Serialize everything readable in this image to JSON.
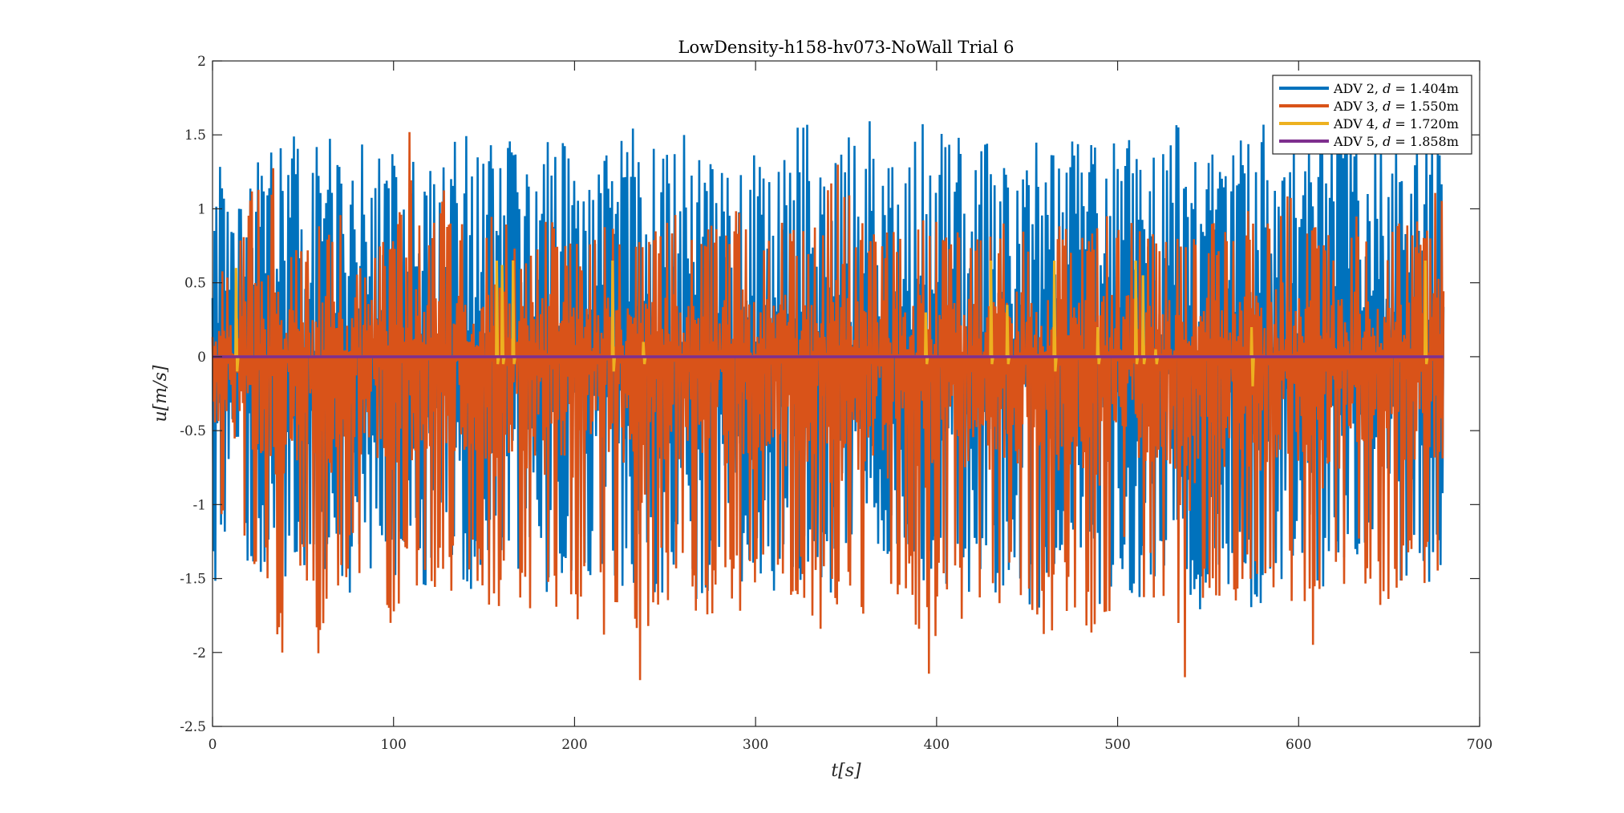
{
  "chart_data": {
    "type": "line",
    "title": "LowDensity-h158-hv073-NoWall Trial 6",
    "xlabel": "t[s]",
    "ylabel": "u[m/s]",
    "xlim": [
      0,
      700
    ],
    "ylim": [
      -2.5,
      2
    ],
    "xticks": [
      0,
      100,
      200,
      300,
      400,
      500,
      600,
      700
    ],
    "yticks": [
      -2.5,
      -2,
      -1.5,
      -1,
      -0.5,
      0,
      0.5,
      1,
      1.5,
      2
    ],
    "xtick_labels": [
      "0",
      "100",
      "200",
      "300",
      "400",
      "500",
      "600",
      "700"
    ],
    "ytick_labels": [
      "-2.5",
      "-2",
      "-1.5",
      "-1",
      "-0.5",
      "0",
      "0.5",
      "1",
      "1.5",
      "2"
    ],
    "grid": false,
    "legend_position": "top-right",
    "series": [
      {
        "name": "ADV 2, d = 1.404m",
        "color": "#0072BD",
        "x_range": [
          0,
          680
        ],
        "envelope_max": [
          1.53,
          1.12,
          1.38,
          1.55,
          1.6,
          1.48,
          1.45,
          1.55,
          1.5,
          1.35,
          1.48,
          1.5,
          1.45,
          1.52,
          1.55,
          1.62,
          1.52,
          1.55,
          1.47,
          1.52,
          1.45,
          1.35,
          1.48,
          1.55,
          1.62,
          1.45,
          1.55,
          1.48,
          1.55,
          1.55,
          1.35,
          1.42,
          1.55,
          1.66,
          1.45,
          1.48,
          1.58,
          1.75,
          1.45,
          1.55,
          1.7,
          1.55,
          1.48,
          1.55,
          1.48,
          1.42,
          1.58,
          1.55,
          1.62,
          1.45,
          1.55,
          1.48,
          1.55,
          1.48,
          1.62,
          1.55,
          1.55,
          1.45,
          1.55,
          1.6,
          1.58,
          1.48,
          1.55,
          1.62,
          1.55,
          1.55,
          1.62,
          1.5,
          1.58,
          1.48
        ],
        "envelope_min": [
          -1.55,
          -1.62,
          -1.55,
          -1.45,
          -1.52,
          -1.62,
          -1.58,
          -1.55,
          -1.62,
          -1.55,
          -1.58,
          -1.52,
          -1.62,
          -1.55,
          -1.7,
          -1.55,
          -1.62,
          -1.58,
          -1.55,
          -1.72,
          -1.62,
          -1.55,
          -1.58,
          -1.65,
          -1.55,
          -1.62,
          -1.55,
          -1.72,
          -1.58,
          -1.62,
          -1.55,
          -1.65,
          -1.58,
          -1.62,
          -1.55,
          -1.62,
          -1.58,
          -1.55,
          -1.62,
          -1.68,
          -1.7,
          -1.58,
          -1.62,
          -1.55,
          -1.62,
          -1.55,
          -1.78,
          -1.55,
          -1.62,
          -1.58,
          -1.78,
          -1.58,
          -1.72,
          -1.62,
          -1.55,
          -1.8,
          -1.62,
          -1.55,
          -1.78,
          -1.65,
          -1.58,
          -1.62,
          -1.55,
          -1.62,
          -1.58,
          -1.55,
          -1.6,
          -1.55,
          -1.62,
          -1.58
        ]
      },
      {
        "name": "ADV 3, d = 1.550m",
        "color": "#D95319",
        "x_range": [
          0,
          680
        ],
        "envelope_max": [
          0.58,
          0.62,
          1.0,
          1.67,
          0.7,
          0.8,
          0.95,
          0.9,
          1.7,
          0.85,
          0.75,
          1.62,
          0.8,
          1.15,
          0.9,
          0.85,
          1.25,
          0.75,
          0.85,
          0.95,
          0.8,
          0.75,
          0.9,
          0.85,
          0.8,
          0.9,
          1.0,
          0.85,
          0.9,
          0.95,
          1.05,
          0.9,
          1.0,
          0.85,
          0.9,
          1.7,
          0.95,
          0.9,
          0.85,
          0.95,
          1.0,
          0.9,
          0.85,
          0.95,
          0.9,
          1.05,
          0.85,
          0.95,
          0.9,
          0.85,
          0.95,
          1.0,
          0.9,
          0.8,
          0.95,
          0.85,
          0.9,
          0.95,
          1.0,
          0.85,
          1.25,
          0.9,
          0.95,
          0.85,
          1.0,
          0.9,
          0.85,
          0.95,
          0.9,
          1.4
        ],
        "envelope_min": [
          -1.0,
          -1.2,
          -1.55,
          -1.5,
          -2.12,
          -1.6,
          -2.18,
          -1.55,
          -1.52,
          -1.62,
          -1.83,
          -1.58,
          -1.55,
          -1.6,
          -1.62,
          -1.55,
          -1.85,
          -1.6,
          -1.85,
          -1.8,
          -1.85,
          -1.7,
          -1.98,
          -2.02,
          -2.27,
          -1.7,
          -1.62,
          -1.78,
          -1.82,
          -1.75,
          -1.85,
          -1.62,
          -1.8,
          -1.68,
          -1.85,
          -1.92,
          -1.75,
          -2.06,
          -1.82,
          -1.7,
          -2.3,
          -1.62,
          -1.78,
          -1.7,
          -1.85,
          -1.68,
          -1.85,
          -2.0,
          -1.75,
          -1.82,
          -2.1,
          -1.6,
          -1.62,
          -1.85,
          -2.38,
          -2.3,
          -1.62,
          -1.85,
          -1.7,
          -1.8,
          -1.62,
          -1.75,
          -2.1,
          -1.7,
          -1.6,
          -1.75,
          -1.65,
          -1.6,
          -1.62,
          -1.55
        ]
      },
      {
        "name": "ADV 4, d = 1.720m",
        "color": "#EDB120",
        "x_range": [
          0,
          680
        ],
        "spike_times": [
          13,
          157,
          160,
          166,
          221,
          238,
          394,
          430,
          439,
          465,
          489,
          510,
          514,
          521,
          574,
          670
        ],
        "spike_max": [
          0.6,
          0.65,
          0.62,
          0.65,
          0.65,
          0.1,
          0.3,
          0.65,
          0.35,
          0.65,
          0.2,
          0.65,
          0.55,
          0.05,
          0.2,
          0.65
        ],
        "spike_min": [
          -0.1,
          -0.05,
          -0.05,
          -0.05,
          -0.1,
          -0.05,
          -0.05,
          -0.05,
          -0.05,
          -0.1,
          -0.05,
          -0.05,
          -0.05,
          -0.05,
          -0.2,
          -0.05
        ]
      },
      {
        "name": "ADV 5, d = 1.858m",
        "color": "#7E2F8E",
        "x_range": [
          0,
          680
        ],
        "values": [
          0,
          0
        ]
      }
    ]
  },
  "legend": {
    "items": [
      {
        "prefix": "ADV 2, ",
        "var": "d",
        "suffix": " = 1.404m",
        "color": "#0072BD"
      },
      {
        "prefix": "ADV 3, ",
        "var": "d",
        "suffix": " = 1.550m",
        "color": "#D95319"
      },
      {
        "prefix": "ADV 4, ",
        "var": "d",
        "suffix": " = 1.720m",
        "color": "#EDB120"
      },
      {
        "prefix": "ADV 5, ",
        "var": "d",
        "suffix": " = 1.858m",
        "color": "#7E2F8E"
      }
    ]
  }
}
